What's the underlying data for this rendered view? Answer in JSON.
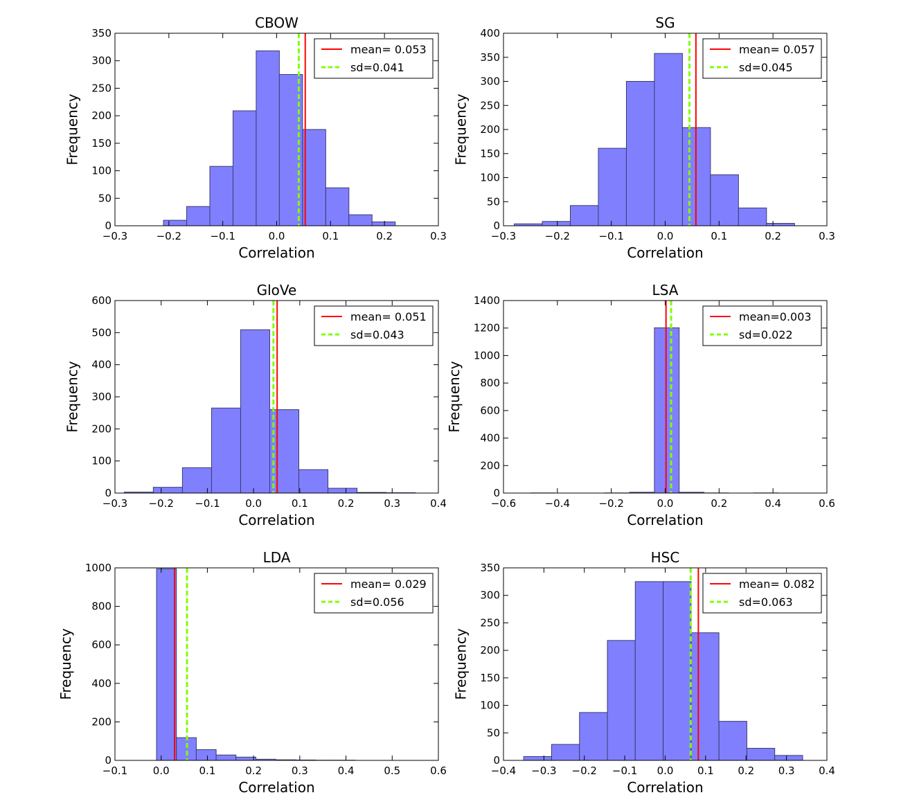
{
  "chart_data": [
    {
      "type": "bar",
      "title": "CBOW",
      "xlabel": "Correlation",
      "ylabel": "Frequency",
      "xlim": [
        -0.3,
        0.3
      ],
      "ylim": [
        0,
        350
      ],
      "xticks": [
        -0.3,
        -0.2,
        -0.1,
        0.0,
        0.1,
        0.2,
        0.3
      ],
      "xtick_labels": [
        "−0.3",
        "−0.2",
        "−0.1",
        "0.0",
        "0.1",
        "0.2",
        "0.3"
      ],
      "yticks": [
        0,
        50,
        100,
        150,
        200,
        250,
        300,
        350
      ],
      "ytick_labels": [
        "0",
        "50",
        "100",
        "150",
        "200",
        "250",
        "300",
        "350"
      ],
      "bin_edges": [
        -0.21,
        -0.167,
        -0.124,
        -0.081,
        -0.038,
        0.005,
        0.048,
        0.091,
        0.134,
        0.177,
        0.22
      ],
      "counts": [
        10,
        35,
        108,
        209,
        318,
        275,
        175,
        69,
        20,
        7
      ],
      "mean": 0.053,
      "sd": 0.041,
      "legend": [
        "mean= 0.053",
        "sd=0.041"
      ],
      "legend_position": "top-right"
    },
    {
      "type": "bar",
      "title": "SG",
      "xlabel": "Correlation",
      "ylabel": "Frequency",
      "xlim": [
        -0.3,
        0.3
      ],
      "ylim": [
        0,
        400
      ],
      "xticks": [
        -0.3,
        -0.2,
        -0.1,
        0.0,
        0.1,
        0.2,
        0.3
      ],
      "xtick_labels": [
        "−0.3",
        "−0.2",
        "−0.1",
        "0.0",
        "0.1",
        "0.2",
        "0.3"
      ],
      "yticks": [
        0,
        50,
        100,
        150,
        200,
        250,
        300,
        350,
        400
      ],
      "ytick_labels": [
        "0",
        "50",
        "100",
        "150",
        "200",
        "250",
        "300",
        "350",
        "400"
      ],
      "bin_edges": [
        -0.28,
        -0.228,
        -0.176,
        -0.124,
        -0.072,
        -0.02,
        0.032,
        0.084,
        0.136,
        0.188,
        0.24
      ],
      "counts": [
        4,
        9,
        42,
        161,
        300,
        358,
        204,
        106,
        37,
        5
      ],
      "mean": 0.057,
      "sd": 0.045,
      "legend": [
        "mean= 0.057",
        "sd=0.045"
      ],
      "legend_position": "top-right"
    },
    {
      "type": "bar",
      "title": "GloVe",
      "xlabel": "Correlation",
      "ylabel": "Frequency",
      "xlim": [
        -0.3,
        0.4
      ],
      "ylim": [
        0,
        600
      ],
      "xticks": [
        -0.3,
        -0.2,
        -0.1,
        0.0,
        0.1,
        0.2,
        0.3,
        0.4
      ],
      "xtick_labels": [
        "−0.3",
        "−0.2",
        "−0.1",
        "0.0",
        "0.1",
        "0.2",
        "0.3",
        "0.4"
      ],
      "yticks": [
        0,
        100,
        200,
        300,
        400,
        500,
        600
      ],
      "ytick_labels": [
        "0",
        "100",
        "200",
        "300",
        "400",
        "500",
        "600"
      ],
      "bin_edges": [
        -0.28,
        -0.217,
        -0.154,
        -0.091,
        -0.028,
        0.035,
        0.098,
        0.161,
        0.224,
        0.287,
        0.35
      ],
      "counts": [
        3,
        18,
        79,
        265,
        509,
        260,
        73,
        15,
        2,
        1
      ],
      "mean": 0.051,
      "sd": 0.043,
      "legend": [
        "mean= 0.051",
        "sd=0.043"
      ],
      "legend_position": "top-right"
    },
    {
      "type": "bar",
      "title": "LSA",
      "xlabel": "Correlation",
      "ylabel": "Frequency",
      "xlim": [
        -0.6,
        0.6
      ],
      "ylim": [
        0,
        1400
      ],
      "xticks": [
        -0.6,
        -0.4,
        -0.2,
        0.0,
        0.2,
        0.4,
        0.6
      ],
      "xtick_labels": [
        "−0.6",
        "−0.4",
        "−0.2",
        "0.0",
        "0.2",
        "0.4",
        "0.6"
      ],
      "yticks": [
        0,
        200,
        400,
        600,
        800,
        1000,
        1200,
        1400
      ],
      "ytick_labels": [
        "0",
        "200",
        "400",
        "600",
        "800",
        "1000",
        "1200",
        "1400"
      ],
      "bin_edges": [
        -0.5,
        -0.408,
        -0.316,
        -0.224,
        -0.132,
        -0.04,
        0.052,
        0.144,
        0.236,
        0.328,
        0.42
      ],
      "counts": [
        1,
        0,
        0,
        1,
        6,
        1202,
        6,
        1,
        0,
        1
      ],
      "mean": 0.003,
      "sd": 0.022,
      "legend": [
        "mean=0.003",
        "sd=0.022"
      ],
      "legend_position": "top-right"
    },
    {
      "type": "bar",
      "title": "LDA",
      "xlabel": "Correlation",
      "ylabel": "Frequency",
      "xlim": [
        -0.1,
        0.6
      ],
      "ylim": [
        0,
        1000
      ],
      "xticks": [
        -0.1,
        0.0,
        0.1,
        0.2,
        0.3,
        0.4,
        0.5,
        0.6
      ],
      "xtick_labels": [
        "−0.1",
        "0.0",
        "0.1",
        "0.2",
        "0.3",
        "0.4",
        "0.5",
        "0.6"
      ],
      "yticks": [
        0,
        200,
        400,
        600,
        800,
        1000
      ],
      "ytick_labels": [
        "0",
        "200",
        "400",
        "600",
        "800",
        "1000"
      ],
      "bin_edges": [
        -0.01,
        0.033,
        0.076,
        0.119,
        0.162,
        0.205,
        0.248,
        0.291,
        0.334,
        0.377,
        0.42
      ],
      "counts": [
        995,
        118,
        56,
        28,
        17,
        6,
        3,
        2,
        1,
        1
      ],
      "mean": 0.029,
      "sd": 0.056,
      "legend": [
        "mean= 0.029",
        "sd=0.056"
      ],
      "legend_position": "top-right"
    },
    {
      "type": "bar",
      "title": "HSC",
      "xlabel": "Correlation",
      "ylabel": "Frequency",
      "xlim": [
        -0.4,
        0.4
      ],
      "ylim": [
        0,
        350
      ],
      "xticks": [
        -0.4,
        -0.3,
        -0.2,
        -0.1,
        0.0,
        0.1,
        0.2,
        0.3,
        0.4
      ],
      "xtick_labels": [
        "−0.4",
        "−0.3",
        "−0.2",
        "−0.1",
        "0.0",
        "0.1",
        "0.2",
        "0.3",
        "0.4"
      ],
      "yticks": [
        0,
        50,
        100,
        150,
        200,
        250,
        300,
        350
      ],
      "ytick_labels": [
        "0",
        "50",
        "100",
        "150",
        "200",
        "250",
        "300",
        "350"
      ],
      "bin_edges": [
        -0.35,
        -0.281,
        -0.212,
        -0.143,
        -0.074,
        -0.005,
        0.064,
        0.133,
        0.202,
        0.271,
        0.34
      ],
      "counts": [
        7,
        29,
        87,
        218,
        325,
        325,
        232,
        71,
        22,
        9
      ],
      "mean": 0.082,
      "sd": 0.063,
      "legend": [
        "mean= 0.082",
        "sd=0.063"
      ],
      "legend_position": "top-right"
    }
  ],
  "style": {
    "bar_fill": "#8080ff",
    "bar_edge": "#3a3a6e",
    "mean_color": "#ff0000",
    "sd_color": "#7fff00",
    "axis_color": "#000000"
  }
}
